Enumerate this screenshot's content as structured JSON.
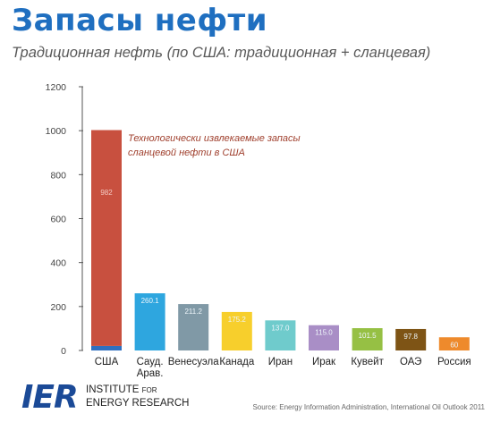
{
  "header": {
    "title": "Запасы нефти",
    "subtitle": "Традиционная нефть (по США: традиционная + сланцевая)"
  },
  "annotation": {
    "line1": "Технологически извлекаемые запасы",
    "line2": "сланцевой нефти в США"
  },
  "logo": {
    "mark": "IER",
    "line1_main": "INSTITUTE ",
    "line1_small": "FOR",
    "line2": "ENERGY RESEARCH"
  },
  "source": "Source: Energy Information Administration, International Oil Outlook 2011",
  "chart_data": {
    "type": "bar",
    "stacked": true,
    "categories": [
      "США",
      "Сауд.\nАрав.",
      "Венесуэла",
      "Канада",
      "Иран",
      "Ирак",
      "Кувейт",
      "ОАЭ",
      "Россия"
    ],
    "ylim": [
      0,
      1200
    ],
    "yticks": [
      0,
      200,
      400,
      600,
      800,
      1000,
      1200
    ],
    "grid": false,
    "series": [
      {
        "values": [
          20.7,
          260.1,
          211.2,
          175.2,
          137.0,
          115.0,
          101.5,
          97.8,
          60
        ],
        "labels": [
          "20.7",
          "260.1",
          "211.2",
          "175.2",
          "137.0",
          "115.0",
          "101.5",
          "97.8",
          "60"
        ],
        "colors": [
          "#2f6fbf",
          "#2ea6df",
          "#8099a6",
          "#f7cf2c",
          "#6fcbcc",
          "#a98ec6",
          "#96c044",
          "#7e5415",
          "#ee8a2c"
        ]
      },
      {
        "values": [
          982,
          0,
          0,
          0,
          0,
          0,
          0,
          0,
          0
        ],
        "labels": [
          "982",
          "",
          "",
          "",
          "",
          "",
          "",
          "",
          ""
        ],
        "colors": [
          "#c8503f"
        ]
      }
    ]
  }
}
